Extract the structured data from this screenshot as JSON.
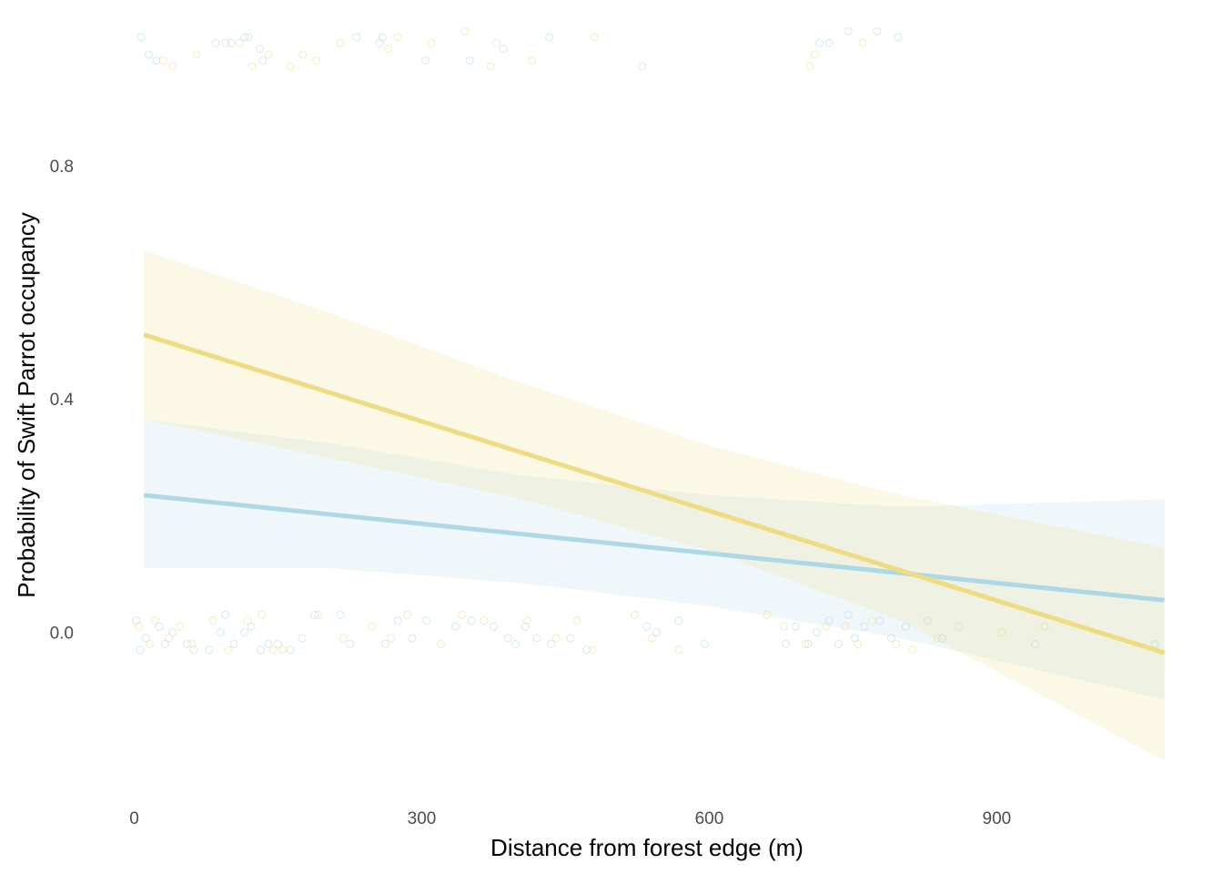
{
  "chart_data": {
    "type": "scatter",
    "title": "",
    "xlabel": "Distance from forest edge (m)",
    "ylabel": "Probability of Swift Parrot occupancy",
    "xlim": [
      -30,
      1100
    ],
    "ylim": [
      -0.28,
      1.04
    ],
    "x_ticks": [
      0,
      300,
      600,
      900
    ],
    "x_tick_labels": [
      "0",
      "300",
      "600",
      "900"
    ],
    "y_ticks": [
      0.0,
      0.4,
      0.8
    ],
    "y_tick_labels": [
      "0.0",
      "0.4",
      "0.8"
    ],
    "grid": false,
    "legend": "none",
    "series": [
      {
        "color": "#add8e6",
        "fit": {
          "x": [
            10,
            1075
          ],
          "y_start": 0.235,
          "y_end": 0.055
        },
        "band_lower": [
          [
            10,
            0.11
          ],
          [
            200,
            0.11
          ],
          [
            400,
            0.085
          ],
          [
            600,
            0.045
          ],
          [
            800,
            -0.01
          ],
          [
            1075,
            -0.115
          ]
        ],
        "band_upper": [
          [
            10,
            0.365
          ],
          [
            200,
            0.325
          ],
          [
            400,
            0.27
          ],
          [
            600,
            0.235
          ],
          [
            800,
            0.215
          ],
          [
            1075,
            0.228
          ]
        ],
        "points_present": [
          [
            7,
            1.02
          ],
          [
            15,
            0.99
          ],
          [
            23,
            0.98
          ],
          [
            85,
            1.01
          ],
          [
            101,
            1.01
          ],
          [
            115,
            1.02
          ],
          [
            119,
            1.02
          ],
          [
            131,
            1.0
          ],
          [
            134,
            0.98
          ],
          [
            232,
            1.02
          ],
          [
            256,
            1.01
          ],
          [
            259,
            1.02
          ],
          [
            304,
            0.98
          ],
          [
            350,
            0.98
          ],
          [
            385,
            1.0
          ],
          [
            433,
            1.02
          ],
          [
            530,
            0.97
          ],
          [
            715,
            1.01
          ],
          [
            725,
            1.01
          ],
          [
            745,
            1.03
          ],
          [
            775,
            1.03
          ],
          [
            797,
            1.02
          ]
        ],
        "points_absent": [
          [
            2,
            0.02
          ],
          [
            6,
            -0.03
          ],
          [
            12,
            -0.01
          ],
          [
            26,
            0.01
          ],
          [
            32,
            -0.02
          ],
          [
            40,
            0.0
          ],
          [
            55,
            -0.02
          ],
          [
            62,
            -0.03
          ],
          [
            78,
            -0.03
          ],
          [
            90,
            0.0
          ],
          [
            95,
            0.03
          ],
          [
            104,
            -0.02
          ],
          [
            115,
            0.0
          ],
          [
            122,
            0.01
          ],
          [
            132,
            -0.03
          ],
          [
            140,
            -0.02
          ],
          [
            150,
            -0.02
          ],
          [
            163,
            -0.03
          ],
          [
            175,
            -0.01
          ],
          [
            188,
            0.03
          ],
          [
            215,
            0.03
          ],
          [
            225,
            -0.02
          ],
          [
            262,
            -0.02
          ],
          [
            275,
            0.02
          ],
          [
            290,
            -0.01
          ],
          [
            305,
            0.02
          ],
          [
            335,
            0.01
          ],
          [
            352,
            0.02
          ],
          [
            375,
            0.01
          ],
          [
            390,
            -0.01
          ],
          [
            398,
            -0.02
          ],
          [
            408,
            0.01
          ],
          [
            420,
            -0.01
          ],
          [
            435,
            -0.02
          ],
          [
            455,
            -0.01
          ],
          [
            472,
            -0.03
          ],
          [
            535,
            0.01
          ],
          [
            545,
            0.0
          ],
          [
            568,
            0.02
          ],
          [
            595,
            -0.02
          ],
          [
            680,
            -0.02
          ],
          [
            690,
            0.01
          ],
          [
            703,
            -0.02
          ],
          [
            712,
            0.0
          ],
          [
            725,
            0.02
          ],
          [
            735,
            -0.02
          ],
          [
            745,
            0.03
          ],
          [
            752,
            -0.01
          ],
          [
            762,
            0.01
          ],
          [
            778,
            0.02
          ],
          [
            790,
            -0.01
          ],
          [
            805,
            0.01
          ],
          [
            828,
            0.02
          ],
          [
            843,
            -0.01
          ],
          [
            940,
            -0.02
          ],
          [
            1065,
            -0.02
          ]
        ]
      },
      {
        "color": "#eedc82",
        "fit": {
          "x": [
            10,
            1075
          ],
          "y_start": 0.51,
          "y_end": -0.035
        },
        "band_lower": [
          [
            10,
            0.365
          ],
          [
            200,
            0.3
          ],
          [
            400,
            0.23
          ],
          [
            600,
            0.14
          ],
          [
            800,
            0.02
          ],
          [
            1075,
            -0.22
          ]
        ],
        "band_upper": [
          [
            10,
            0.655
          ],
          [
            200,
            0.55
          ],
          [
            400,
            0.43
          ],
          [
            600,
            0.32
          ],
          [
            800,
            0.235
          ],
          [
            1075,
            0.145
          ]
        ],
        "points_present": [
          [
            30,
            0.98
          ],
          [
            40,
            0.97
          ],
          [
            65,
            0.99
          ],
          [
            95,
            1.01
          ],
          [
            110,
            1.01
          ],
          [
            123,
            0.97
          ],
          [
            140,
            0.99
          ],
          [
            163,
            0.97
          ],
          [
            176,
            0.99
          ],
          [
            190,
            0.98
          ],
          [
            215,
            1.01
          ],
          [
            265,
            1.0
          ],
          [
            275,
            1.02
          ],
          [
            310,
            1.01
          ],
          [
            345,
            1.03
          ],
          [
            372,
            0.97
          ],
          [
            378,
            1.01
          ],
          [
            415,
            0.98
          ],
          [
            480,
            1.02
          ],
          [
            705,
            0.97
          ],
          [
            710,
            0.99
          ],
          [
            760,
            1.01
          ]
        ],
        "points_absent": [
          [
            5,
            0.01
          ],
          [
            16,
            -0.02
          ],
          [
            22,
            0.02
          ],
          [
            36,
            -0.01
          ],
          [
            48,
            0.01
          ],
          [
            60,
            -0.02
          ],
          [
            82,
            0.02
          ],
          [
            98,
            -0.03
          ],
          [
            118,
            0.02
          ],
          [
            133,
            0.03
          ],
          [
            145,
            -0.03
          ],
          [
            155,
            -0.03
          ],
          [
            192,
            0.03
          ],
          [
            218,
            -0.01
          ],
          [
            248,
            0.01
          ],
          [
            268,
            -0.01
          ],
          [
            285,
            0.03
          ],
          [
            320,
            -0.02
          ],
          [
            342,
            0.03
          ],
          [
            365,
            0.02
          ],
          [
            410,
            0.02
          ],
          [
            440,
            -0.01
          ],
          [
            462,
            0.02
          ],
          [
            478,
            -0.03
          ],
          [
            522,
            0.03
          ],
          [
            540,
            -0.01
          ],
          [
            568,
            -0.03
          ],
          [
            660,
            0.03
          ],
          [
            678,
            0.01
          ],
          [
            700,
            -0.02
          ],
          [
            722,
            0.01
          ],
          [
            742,
            0.01
          ],
          [
            755,
            -0.02
          ],
          [
            770,
            0.02
          ],
          [
            795,
            -0.02
          ],
          [
            812,
            -0.03
          ],
          [
            838,
            -0.01
          ],
          [
            860,
            0.01
          ],
          [
            905,
            0.0
          ],
          [
            950,
            0.01
          ]
        ]
      }
    ]
  }
}
